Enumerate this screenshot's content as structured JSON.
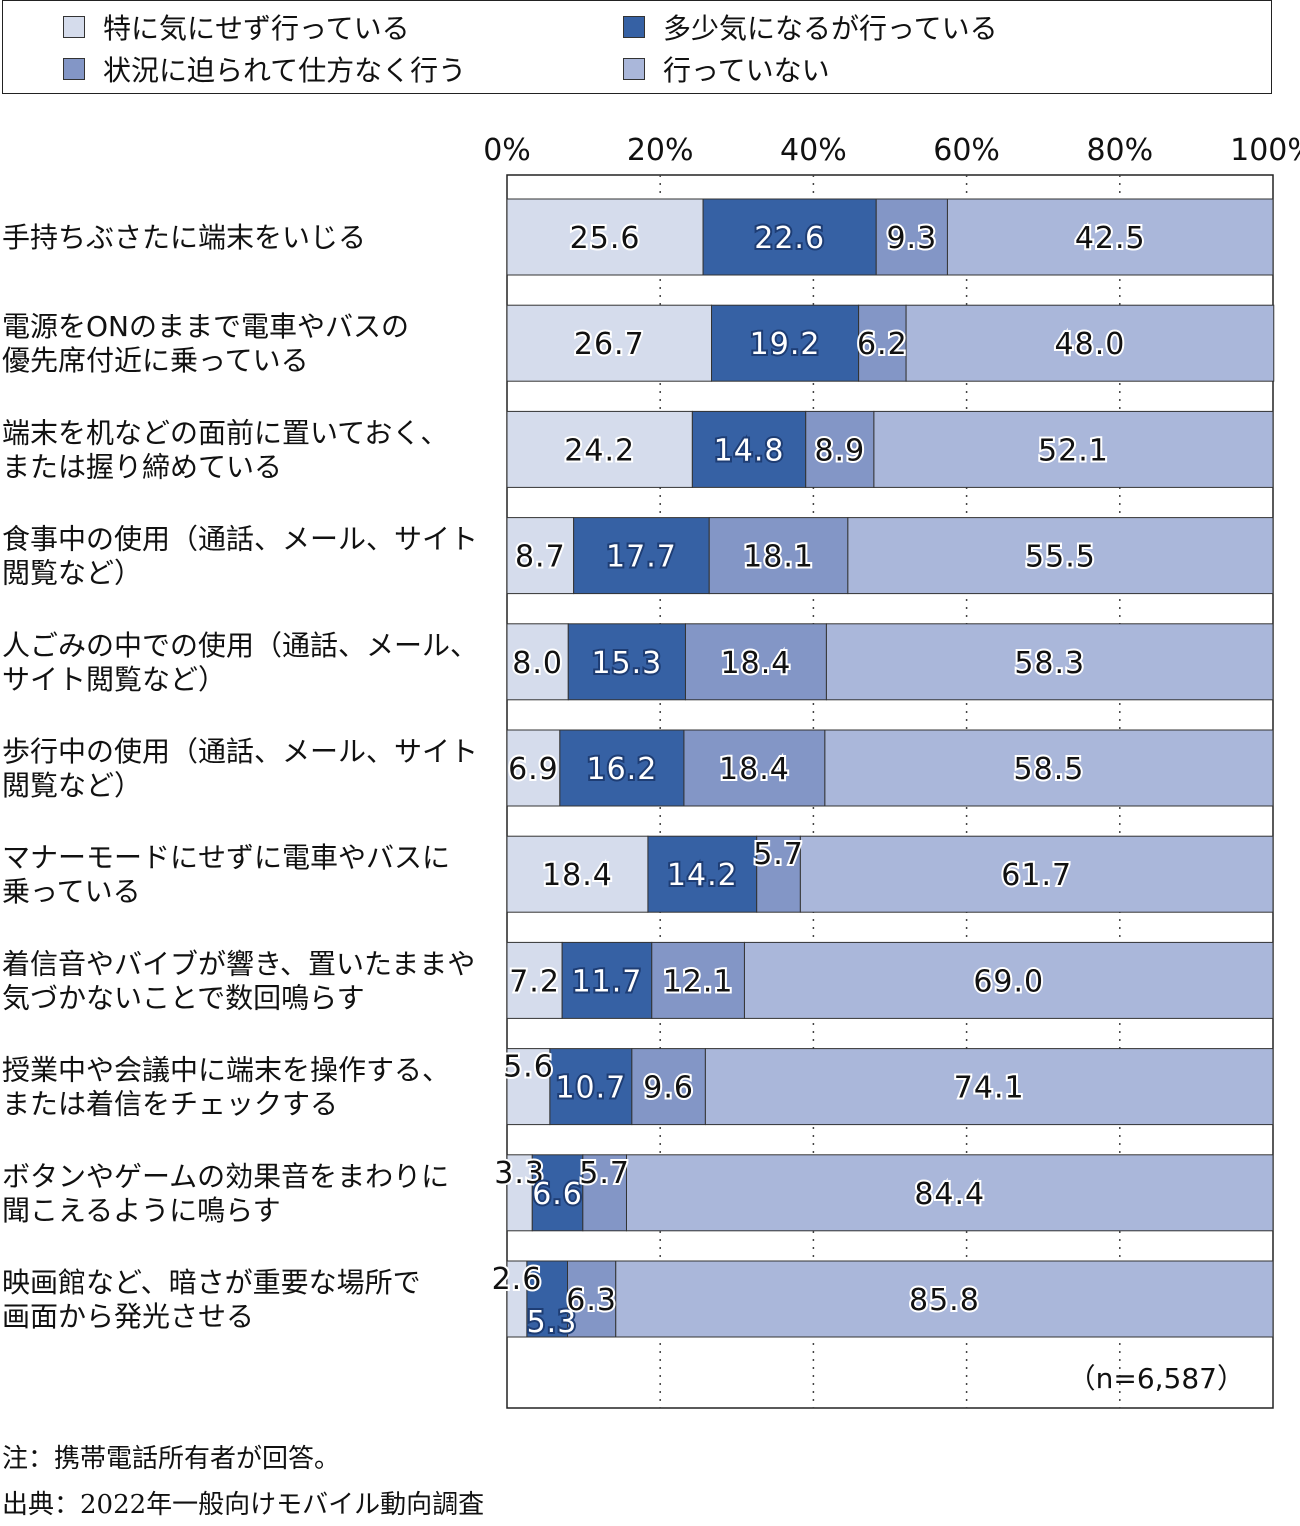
{
  "legend": [
    {
      "label": "特に気にせず行っている",
      "color": "#d5dcec"
    },
    {
      "label": "多少気になるが行っている",
      "color": "#3661a4"
    },
    {
      "label": "状況に迫られて仕方なく行う",
      "color": "#8396c6"
    },
    {
      "label": "行っていない",
      "color": "#aab7da"
    }
  ],
  "chart_data": {
    "type": "bar",
    "orientation": "horizontal",
    "stacked": true,
    "xlim": [
      0,
      100
    ],
    "ticks": [
      "0%",
      "20%",
      "40%",
      "60%",
      "80%",
      "100%"
    ],
    "categories": [
      [
        "手持ちぶさたに端末をいじる"
      ],
      [
        "電源をONのままで電車やバスの",
        "優先席付近に乗っている"
      ],
      [
        "端末を机などの面前に置いておく、",
        "または握り締めている"
      ],
      [
        "食事中の使用（通話、メール、サイト",
        "閲覧など）"
      ],
      [
        "人ごみの中での使用（通話、メール、",
        "サイト閲覧など）"
      ],
      [
        "歩行中の使用（通話、メール、サイト",
        "閲覧など）"
      ],
      [
        "マナーモードにせずに電車やバスに",
        "乗っている"
      ],
      [
        "着信音やバイブが響き、置いたままや",
        "気づかないことで数回鳴らす"
      ],
      [
        "授業中や会議中に端末を操作する、",
        "または着信をチェックする"
      ],
      [
        "ボタンやゲームの効果音をまわりに",
        "聞こえるように鳴らす"
      ],
      [
        "映画館など、暗さが重要な場所で",
        "画面から発光させる"
      ]
    ],
    "series": [
      {
        "name": "特に気にせず行っている",
        "values": [
          25.6,
          26.7,
          24.2,
          8.7,
          8.0,
          6.9,
          18.4,
          7.2,
          5.6,
          3.3,
          2.6
        ]
      },
      {
        "name": "多少気になるが行っている",
        "values": [
          22.6,
          19.2,
          14.8,
          17.7,
          15.3,
          16.2,
          14.2,
          11.7,
          10.7,
          6.6,
          5.3
        ]
      },
      {
        "name": "状況に迫られて仕方なく行う",
        "values": [
          9.3,
          6.2,
          8.9,
          18.1,
          18.4,
          18.4,
          5.7,
          12.1,
          9.6,
          5.7,
          6.3
        ]
      },
      {
        "name": "行っていない",
        "values": [
          42.5,
          48.0,
          52.1,
          55.5,
          58.3,
          58.5,
          61.7,
          69.0,
          74.1,
          84.4,
          85.8
        ]
      }
    ],
    "sample_note": "（n=6,587）"
  },
  "notes": {
    "note": "注：携帯電話所有者が回答。",
    "source": "出典：2022年一般向けモバイル動向調査"
  }
}
